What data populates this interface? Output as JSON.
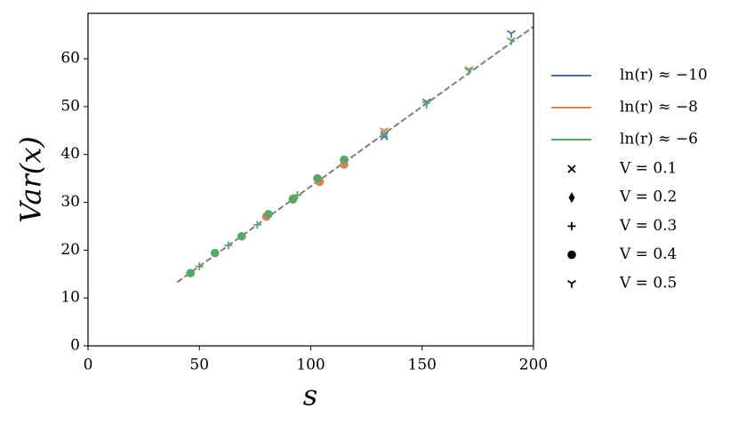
{
  "chart_data": {
    "type": "scatter",
    "x_label": "s",
    "y_label": "Var(x)",
    "xlim": [
      0,
      200
    ],
    "xticks": [
      0,
      50,
      100,
      150,
      200
    ],
    "ylim": [
      0,
      69.5
    ],
    "yticks": [
      0,
      10,
      20,
      30,
      40,
      50,
      60
    ],
    "reference_line": {
      "x": [
        40,
        200
      ],
      "y": [
        13.3,
        66.7
      ],
      "color": "#808080"
    },
    "legend": {
      "colors": [
        {
          "label": "ln(r) ≈ −10",
          "color": "#4c72b0"
        },
        {
          "label": "ln(r) ≈ −8",
          "color": "#dd8452"
        },
        {
          "label": "ln(r) ≈ −6",
          "color": "#55a868"
        }
      ],
      "markers": [
        {
          "label": "V = 0.1",
          "marker": "x"
        },
        {
          "label": "V = 0.2",
          "marker": "diamond"
        },
        {
          "label": "V = 0.3",
          "marker": "plus"
        },
        {
          "label": "V = 0.4",
          "marker": "circle"
        },
        {
          "label": "V = 0.5",
          "marker": "tri_down"
        }
      ]
    },
    "series": [
      {
        "color": "#dd8452",
        "marker": "circle",
        "x": [
          80,
          92,
          104,
          115
        ],
        "values": [
          27,
          30.8,
          34.3,
          37.9
        ]
      },
      {
        "color": "#55a868",
        "marker": "circle",
        "x": [
          46,
          57,
          69,
          81,
          92,
          103,
          115
        ],
        "values": [
          15.2,
          19.4,
          22.9,
          27.5,
          30.6,
          35,
          38.9
        ]
      },
      {
        "color": "#55a868",
        "marker": "plus",
        "x": [
          50,
          63,
          76,
          94
        ],
        "values": [
          16.6,
          21,
          25.3,
          31.5
        ]
      },
      {
        "color": "#4c72b0",
        "marker": "x",
        "x": [
          133
        ],
        "values": [
          43.8
        ]
      },
      {
        "color": "#55a868",
        "marker": "x",
        "x": [
          133
        ],
        "values": [
          44.3
        ]
      },
      {
        "color": "#dd8452",
        "marker": "tri_down",
        "x": [
          133,
          171
        ],
        "values": [
          45,
          57.8
        ]
      },
      {
        "color": "#4c72b0",
        "marker": "tri_down",
        "x": [
          152,
          190
        ],
        "values": [
          51,
          65.3
        ]
      },
      {
        "color": "#55a868",
        "marker": "tri_down",
        "x": [
          152,
          171,
          190
        ],
        "values": [
          50.5,
          57.5,
          63.8
        ]
      }
    ]
  }
}
